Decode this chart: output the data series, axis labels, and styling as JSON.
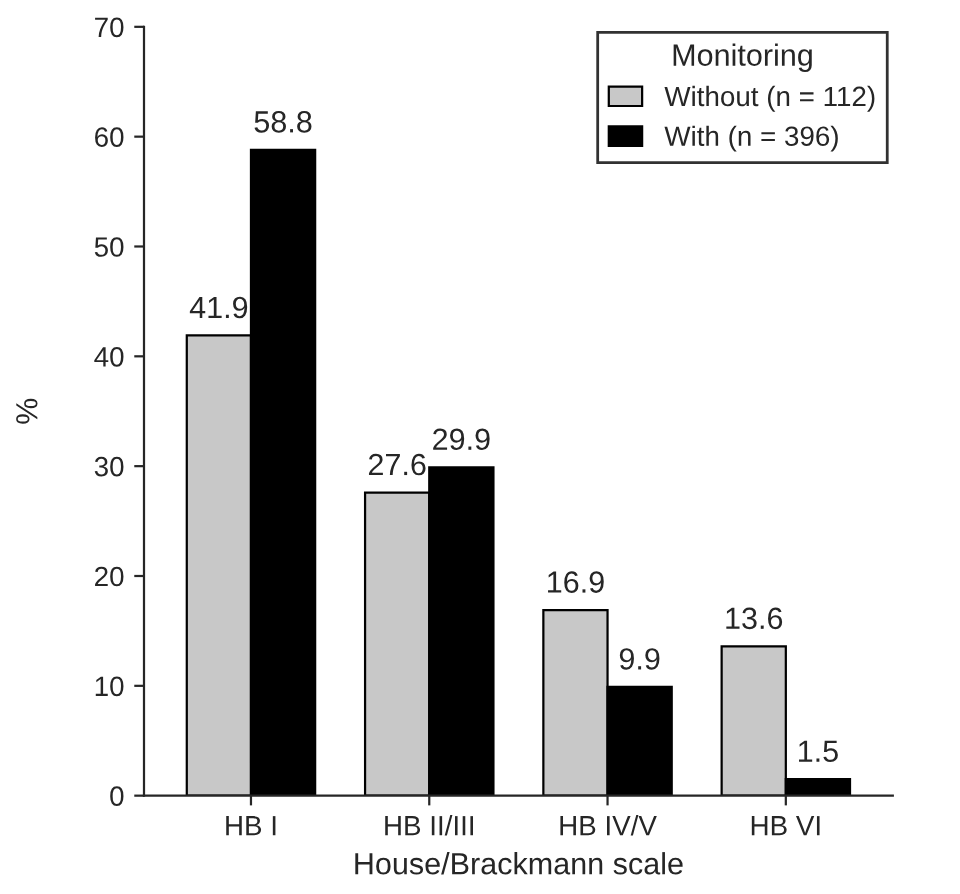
{
  "chart_data": {
    "type": "bar",
    "categories": [
      "HB I",
      "HB II/III",
      "HB IV/V",
      "HB VI"
    ],
    "series": [
      {
        "name": "Without (n = 112)",
        "color": "#c8c8c8",
        "values": [
          41.9,
          27.6,
          16.9,
          13.6
        ]
      },
      {
        "name": "With (n = 396)",
        "color": "#000000",
        "values": [
          58.8,
          29.9,
          9.9,
          1.5
        ]
      }
    ],
    "xlabel": "House/Brackmann scale",
    "ylabel": "%",
    "legend_title": "Monitoring",
    "ylim": [
      0,
      70
    ],
    "yticks": [
      0,
      10,
      20,
      30,
      40,
      50,
      60,
      70
    ],
    "data_labels": true,
    "grid": false,
    "legend": "top right"
  }
}
